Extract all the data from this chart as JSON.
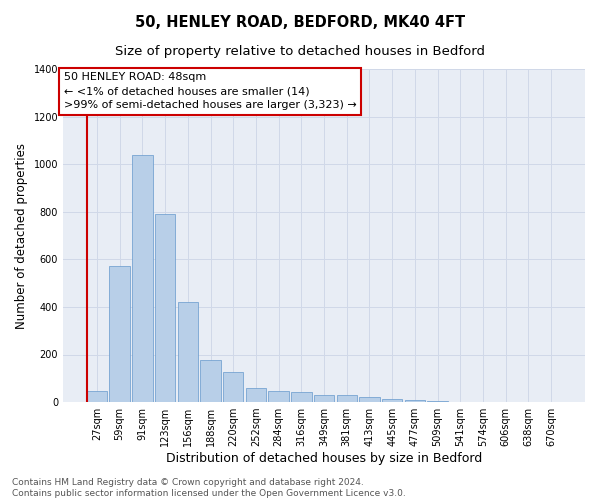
{
  "title": "50, HENLEY ROAD, BEDFORD, MK40 4FT",
  "subtitle": "Size of property relative to detached houses in Bedford",
  "xlabel": "Distribution of detached houses by size in Bedford",
  "ylabel": "Number of detached properties",
  "categories": [
    "27sqm",
    "59sqm",
    "91sqm",
    "123sqm",
    "156sqm",
    "188sqm",
    "220sqm",
    "252sqm",
    "284sqm",
    "316sqm",
    "349sqm",
    "381sqm",
    "413sqm",
    "445sqm",
    "477sqm",
    "509sqm",
    "541sqm",
    "574sqm",
    "606sqm",
    "638sqm",
    "670sqm"
  ],
  "values": [
    45,
    570,
    1040,
    790,
    420,
    178,
    128,
    58,
    48,
    42,
    30,
    28,
    20,
    12,
    8,
    4,
    2,
    0,
    0,
    0,
    0
  ],
  "bar_color": "#b8cfe8",
  "bar_edge_color": "#6699cc",
  "highlight_color": "#cc0000",
  "annotation_text_line1": "50 HENLEY ROAD: 48sqm",
  "annotation_text_line2": "← <1% of detached houses are smaller (14)",
  "annotation_text_line3": ">99% of semi-detached houses are larger (3,323) →",
  "ylim": [
    0,
    1400
  ],
  "yticks": [
    0,
    200,
    400,
    600,
    800,
    1000,
    1200,
    1400
  ],
  "grid_color": "#d0d8e8",
  "plot_bg_color": "#e8edf5",
  "fig_bg_color": "#ffffff",
  "footer_line1": "Contains HM Land Registry data © Crown copyright and database right 2024.",
  "footer_line2": "Contains public sector information licensed under the Open Government Licence v3.0.",
  "title_fontsize": 10.5,
  "subtitle_fontsize": 9.5,
  "annotation_fontsize": 8,
  "ylabel_fontsize": 8.5,
  "xlabel_fontsize": 9,
  "tick_fontsize": 7,
  "footer_fontsize": 6.5
}
